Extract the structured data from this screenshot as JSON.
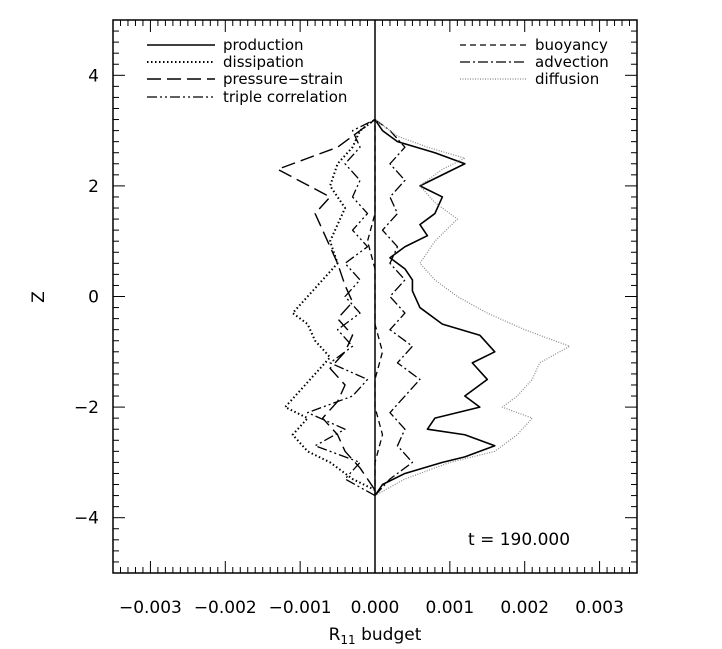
{
  "chart_data": {
    "type": "line",
    "title": "",
    "xlabel_main": "R",
    "xlabel_sub": "11",
    "xlabel_rest": " budget",
    "ylabel": "Z",
    "xlim": [
      -0.0035,
      0.0035
    ],
    "ylim": [
      -5,
      5
    ],
    "x_ticks": [
      -0.003,
      -0.002,
      -0.001,
      0.0,
      0.001,
      0.002,
      0.003
    ],
    "x_tick_labels": [
      "−0.003",
      "−0.002",
      "−0.001",
      "0.000",
      "0.001",
      "0.002",
      "0.003"
    ],
    "y_ticks": [
      -4,
      -2,
      0,
      2,
      4
    ],
    "y_tick_labels": [
      "−4",
      "−2",
      "0",
      "2",
      "4"
    ],
    "grid": false,
    "legend_position": "top",
    "annotation": "t  =  190.000",
    "series": [
      {
        "name": "production",
        "style": "solid",
        "color": "#000000",
        "points": [
          [
            0.0,
            -3.6
          ],
          [
            0.0001,
            -3.4
          ],
          [
            0.0004,
            -3.2
          ],
          [
            0.0009,
            -3.0
          ],
          [
            0.0012,
            -2.9
          ],
          [
            0.0016,
            -2.7
          ],
          [
            0.0012,
            -2.5
          ],
          [
            0.0007,
            -2.4
          ],
          [
            0.0008,
            -2.2
          ],
          [
            0.0014,
            -2.0
          ],
          [
            0.0012,
            -1.8
          ],
          [
            0.0015,
            -1.5
          ],
          [
            0.0013,
            -1.2
          ],
          [
            0.0016,
            -1.0
          ],
          [
            0.0014,
            -0.7
          ],
          [
            0.0009,
            -0.5
          ],
          [
            0.0006,
            -0.2
          ],
          [
            0.0005,
            0.1
          ],
          [
            0.0005,
            0.3
          ],
          [
            0.0004,
            0.5
          ],
          [
            0.0002,
            0.7
          ],
          [
            0.0004,
            0.9
          ],
          [
            0.0007,
            1.1
          ],
          [
            0.0006,
            1.3
          ],
          [
            0.0008,
            1.5
          ],
          [
            0.0009,
            1.8
          ],
          [
            0.0006,
            2.0
          ],
          [
            0.0012,
            2.4
          ],
          [
            0.0008,
            2.6
          ],
          [
            0.0003,
            2.8
          ],
          [
            0.0001,
            3.0
          ],
          [
            0.0,
            3.2
          ]
        ]
      },
      {
        "name": "dissipation",
        "style": "dotted",
        "color": "#000000",
        "points": [
          [
            0.0,
            -3.5
          ],
          [
            -0.0003,
            -3.3
          ],
          [
            -0.0006,
            -3.0
          ],
          [
            -0.0009,
            -2.8
          ],
          [
            -0.0011,
            -2.5
          ],
          [
            -0.0009,
            -2.2
          ],
          [
            -0.0012,
            -2.0
          ],
          [
            -0.001,
            -1.7
          ],
          [
            -0.0008,
            -1.4
          ],
          [
            -0.0006,
            -1.1
          ],
          [
            -0.0008,
            -0.8
          ],
          [
            -0.0009,
            -0.5
          ],
          [
            -0.0011,
            -0.3
          ],
          [
            -0.0009,
            0.0
          ],
          [
            -0.0007,
            0.3
          ],
          [
            -0.0005,
            0.6
          ],
          [
            -0.0006,
            1.0
          ],
          [
            -0.0005,
            1.3
          ],
          [
            -0.0004,
            1.6
          ],
          [
            -0.0006,
            2.0
          ],
          [
            -0.0005,
            2.4
          ],
          [
            -0.0003,
            2.7
          ],
          [
            -0.0002,
            3.0
          ],
          [
            0.0,
            3.2
          ]
        ]
      },
      {
        "name": "pressure−strain",
        "style": "dashed-long",
        "color": "#000000",
        "points": [
          [
            0.0,
            -3.5
          ],
          [
            -0.0001,
            -3.3
          ],
          [
            -0.0002,
            -3.1
          ],
          [
            -0.0004,
            -2.8
          ],
          [
            -0.0005,
            -2.5
          ],
          [
            -0.0007,
            -2.2
          ],
          [
            -0.0005,
            -1.9
          ],
          [
            -0.0004,
            -1.6
          ],
          [
            -0.0006,
            -1.3
          ],
          [
            -0.0004,
            -1.0
          ],
          [
            -0.0003,
            -0.7
          ],
          [
            -0.0005,
            -0.4
          ],
          [
            -0.0003,
            -0.1
          ],
          [
            -0.0004,
            0.2
          ],
          [
            -0.0005,
            0.6
          ],
          [
            -0.0006,
            0.9
          ],
          [
            -0.0007,
            1.2
          ],
          [
            -0.0008,
            1.5
          ],
          [
            -0.0006,
            1.8
          ],
          [
            -0.0013,
            2.3
          ],
          [
            -0.0009,
            2.5
          ],
          [
            -0.0005,
            2.7
          ],
          [
            -0.0003,
            2.9
          ],
          [
            -0.0001,
            3.1
          ],
          [
            0.0,
            3.2
          ]
        ]
      },
      {
        "name": "triple correlation",
        "style": "dash-dot-dot",
        "color": "#000000",
        "points": [
          [
            0.0,
            -3.6
          ],
          [
            -0.0004,
            -3.3
          ],
          [
            -0.0002,
            -3.0
          ],
          [
            -0.0008,
            -2.7
          ],
          [
            -0.0004,
            -2.4
          ],
          [
            -0.0009,
            -2.1
          ],
          [
            -0.0003,
            -1.8
          ],
          [
            -0.0001,
            -1.5
          ],
          [
            -0.0006,
            -1.2
          ],
          [
            -0.0003,
            -0.9
          ],
          [
            -0.0005,
            -0.6
          ],
          [
            -0.0002,
            -0.3
          ],
          [
            -0.0004,
            0.0
          ],
          [
            -0.0002,
            0.3
          ],
          [
            -0.0004,
            0.6
          ],
          [
            -0.0001,
            0.9
          ],
          [
            -0.0003,
            1.2
          ],
          [
            -0.0001,
            1.5
          ],
          [
            -0.0003,
            1.8
          ],
          [
            -0.0002,
            2.1
          ],
          [
            -0.0004,
            2.4
          ],
          [
            -0.0002,
            2.7
          ],
          [
            -0.0003,
            3.0
          ],
          [
            0.0,
            3.2
          ]
        ]
      },
      {
        "name": "buoyancy",
        "style": "dashed",
        "color": "#000000",
        "points": [
          [
            0.0,
            -3.6
          ],
          [
            0.0,
            -3.0
          ],
          [
            0.0001,
            -2.5
          ],
          [
            0.0,
            -2.0
          ],
          [
            0.0,
            -1.5
          ],
          [
            0.0001,
            -1.0
          ],
          [
            0.0,
            -0.5
          ],
          [
            0.0,
            0.0
          ],
          [
            0.0,
            0.5
          ],
          [
            -0.0001,
            1.0
          ],
          [
            0.0,
            1.5
          ],
          [
            0.0,
            2.0
          ],
          [
            0.0,
            2.5
          ],
          [
            0.0,
            3.0
          ],
          [
            0.0,
            3.2
          ]
        ]
      },
      {
        "name": "advection",
        "style": "dash-dot",
        "color": "#000000",
        "points": [
          [
            0.0,
            -3.6
          ],
          [
            0.0002,
            -3.3
          ],
          [
            0.0005,
            -3.0
          ],
          [
            0.0003,
            -2.7
          ],
          [
            0.0004,
            -2.4
          ],
          [
            0.0002,
            -2.1
          ],
          [
            0.0004,
            -1.8
          ],
          [
            0.0006,
            -1.5
          ],
          [
            0.0003,
            -1.2
          ],
          [
            0.0005,
            -0.9
          ],
          [
            0.0002,
            -0.6
          ],
          [
            0.0004,
            -0.3
          ],
          [
            0.0002,
            0.0
          ],
          [
            0.0004,
            0.3
          ],
          [
            0.0002,
            0.6
          ],
          [
            0.0003,
            0.9
          ],
          [
            0.0001,
            1.2
          ],
          [
            0.0003,
            1.5
          ],
          [
            0.0002,
            1.8
          ],
          [
            0.0004,
            2.1
          ],
          [
            0.0002,
            2.4
          ],
          [
            0.0004,
            2.7
          ],
          [
            0.0002,
            3.0
          ],
          [
            0.0,
            3.2
          ]
        ]
      },
      {
        "name": "diffusion",
        "style": "dotted-fine",
        "color": "#888888",
        "points": [
          [
            0.0,
            -3.6
          ],
          [
            0.0004,
            -3.3
          ],
          [
            0.001,
            -3.0
          ],
          [
            0.0016,
            -2.8
          ],
          [
            0.0019,
            -2.5
          ],
          [
            0.0021,
            -2.2
          ],
          [
            0.0017,
            -2.0
          ],
          [
            0.0019,
            -1.8
          ],
          [
            0.0021,
            -1.5
          ],
          [
            0.0022,
            -1.2
          ],
          [
            0.0026,
            -0.9
          ],
          [
            0.002,
            -0.6
          ],
          [
            0.0015,
            -0.3
          ],
          [
            0.0011,
            0.0
          ],
          [
            0.0008,
            0.3
          ],
          [
            0.0006,
            0.6
          ],
          [
            0.0008,
            1.0
          ],
          [
            0.0011,
            1.4
          ],
          [
            0.0008,
            1.7
          ],
          [
            0.0006,
            2.0
          ],
          [
            0.0009,
            2.3
          ],
          [
            0.0012,
            2.5
          ],
          [
            0.0007,
            2.7
          ],
          [
            0.0003,
            2.9
          ],
          [
            0.0001,
            3.1
          ],
          [
            0.0,
            3.2
          ]
        ]
      }
    ]
  }
}
